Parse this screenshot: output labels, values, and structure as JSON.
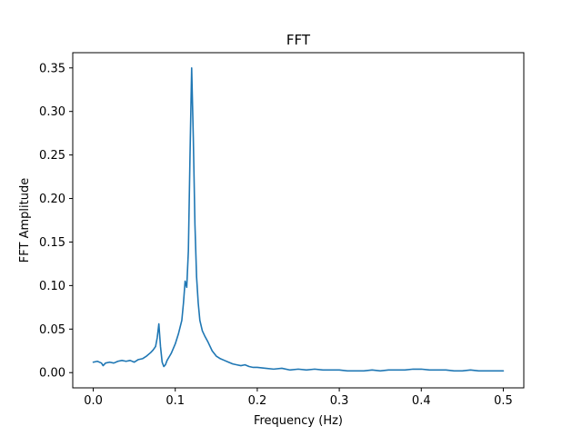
{
  "chart_data": {
    "type": "line",
    "title": "FFT",
    "xlabel": "Frequency (Hz)",
    "ylabel": "FFT Amplitude",
    "xlim": [
      -0.025,
      0.525
    ],
    "ylim": [
      -0.0175,
      0.3675
    ],
    "xticks": [
      0.0,
      0.1,
      0.2,
      0.3,
      0.4,
      0.5
    ],
    "xtick_labels": [
      "0.0",
      "0.1",
      "0.2",
      "0.3",
      "0.4",
      "0.5"
    ],
    "yticks": [
      0.0,
      0.05,
      0.1,
      0.15,
      0.2,
      0.25,
      0.3,
      0.35
    ],
    "ytick_labels": [
      "0.00",
      "0.05",
      "0.10",
      "0.15",
      "0.20",
      "0.25",
      "0.30",
      "0.35"
    ],
    "grid": false,
    "colors": {
      "line": "#1f77b4",
      "axes": "#000000",
      "background": "#ffffff"
    },
    "series": [
      {
        "x": [
          0.0,
          0.005,
          0.01,
          0.012,
          0.015,
          0.02,
          0.025,
          0.03,
          0.035,
          0.04,
          0.045,
          0.05,
          0.055,
          0.06,
          0.065,
          0.07,
          0.073,
          0.076,
          0.078,
          0.08,
          0.082,
          0.084,
          0.086,
          0.088,
          0.09,
          0.095,
          0.1,
          0.104,
          0.108,
          0.11,
          0.112,
          0.114,
          0.116,
          0.118,
          0.12,
          0.122,
          0.124,
          0.126,
          0.128,
          0.13,
          0.133,
          0.136,
          0.14,
          0.145,
          0.15,
          0.155,
          0.16,
          0.165,
          0.17,
          0.175,
          0.18,
          0.185,
          0.19,
          0.195,
          0.2,
          0.21,
          0.22,
          0.23,
          0.24,
          0.25,
          0.26,
          0.27,
          0.28,
          0.29,
          0.3,
          0.31,
          0.32,
          0.33,
          0.34,
          0.35,
          0.36,
          0.37,
          0.38,
          0.39,
          0.4,
          0.41,
          0.42,
          0.43,
          0.44,
          0.45,
          0.46,
          0.47,
          0.48,
          0.49,
          0.5
        ],
        "y": [
          0.012,
          0.013,
          0.011,
          0.008,
          0.011,
          0.012,
          0.011,
          0.013,
          0.014,
          0.013,
          0.014,
          0.012,
          0.015,
          0.016,
          0.019,
          0.023,
          0.026,
          0.03,
          0.04,
          0.056,
          0.03,
          0.012,
          0.007,
          0.009,
          0.014,
          0.022,
          0.033,
          0.045,
          0.06,
          0.08,
          0.105,
          0.098,
          0.14,
          0.25,
          0.35,
          0.27,
          0.17,
          0.11,
          0.08,
          0.06,
          0.048,
          0.042,
          0.035,
          0.025,
          0.019,
          0.016,
          0.014,
          0.012,
          0.01,
          0.009,
          0.008,
          0.009,
          0.007,
          0.006,
          0.006,
          0.005,
          0.004,
          0.005,
          0.003,
          0.004,
          0.003,
          0.004,
          0.003,
          0.003,
          0.003,
          0.002,
          0.002,
          0.002,
          0.003,
          0.002,
          0.003,
          0.003,
          0.003,
          0.004,
          0.004,
          0.003,
          0.003,
          0.003,
          0.002,
          0.002,
          0.003,
          0.002,
          0.002,
          0.002,
          0.002
        ]
      }
    ]
  }
}
